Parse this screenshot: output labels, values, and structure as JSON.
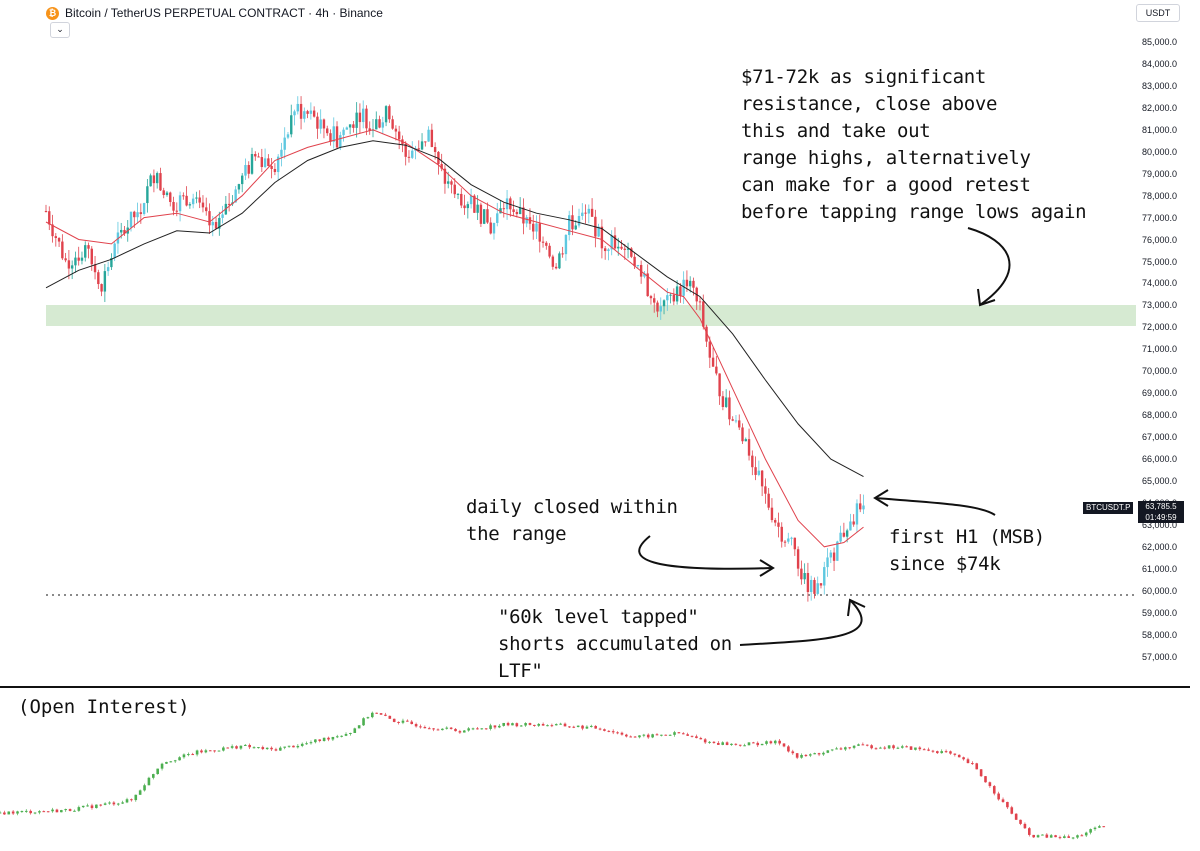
{
  "header": {
    "symbol_icon": "bitcoin-icon",
    "title": "Bitcoin / TetherUS PERPETUAL CONTRACT · 4h · Binance",
    "collapse_icon": "chevron-down-icon",
    "currency": "USDT"
  },
  "price_tag": {
    "symbol": "BTCUSDT.P",
    "price": "63,785.5",
    "countdown": "01:49:59"
  },
  "annotations": {
    "resistance_note": "$71-72k as significant\nresistance, close above\nthis and take out\nrange highs, alternatively\ncan make for a good retest\nbefore tapping range lows again",
    "daily_note": "daily closed within\nthe range",
    "msb_note": "first H1 (MSB)\nsince $74k",
    "tap_note": "\"60k level tapped\"\nshorts accumulated on\nLTF\""
  },
  "lower_panel": {
    "title": "(Open Interest)"
  },
  "colors": {
    "up": "#26a69a",
    "up_light": "#5ec8e0",
    "down": "#e0424c",
    "ema_fast": "#e0424c",
    "ema_slow": "#222222",
    "zone": "#d6ead2",
    "oi_up": "#4caf50",
    "oi_down": "#e0424c"
  },
  "chart_data": [
    {
      "type": "candlestick",
      "title": "Bitcoin / TetherUS PERPETUAL CONTRACT · 4h · Binance",
      "y_axis_ticks": [
        85000,
        84000,
        83000,
        82000,
        81000,
        80000,
        79000,
        78000,
        77000,
        76000,
        75000,
        74000,
        73000,
        72000,
        71000,
        70000,
        69000,
        68000,
        67000,
        66000,
        65000,
        64000,
        63000,
        62000,
        61000,
        60000,
        59000,
        58000,
        57000
      ],
      "y_axis_labels": [
        "85,000.0",
        "84,000.0",
        "83,000.0",
        "82,000.0",
        "81,000.0",
        "80,000.0",
        "79,000.0",
        "78,000.0",
        "77,000.0",
        "76,000.0",
        "75,000.0",
        "74,000.0",
        "73,000.0",
        "72,000.0",
        "71,000.0",
        "70,000.0",
        "69,000.0",
        "68,000.0",
        "67,000.0",
        "66,000.0",
        "65,000.0",
        "64,000.0",
        "63,000.0",
        "62,000.0",
        "61,000.0",
        "60,000.0",
        "59,000.0",
        "58,000.0",
        "57,000.0"
      ],
      "ylim": [
        56500,
        86000
      ],
      "last_price": 63785.5,
      "resistance_zone": [
        72000,
        73000
      ],
      "dotted_level": 59800,
      "price_path": [
        [
          0,
          77300
        ],
        [
          6,
          75000
        ],
        [
          12,
          75500
        ],
        [
          17,
          74000
        ],
        [
          22,
          76000
        ],
        [
          29,
          77500
        ],
        [
          33,
          79000
        ],
        [
          38,
          77600
        ],
        [
          44,
          78000
        ],
        [
          52,
          76200
        ],
        [
          57,
          78000
        ],
        [
          64,
          79800
        ],
        [
          70,
          79500
        ],
        [
          76,
          82000
        ],
        [
          82,
          81500
        ],
        [
          89,
          80600
        ],
        [
          96,
          81800
        ],
        [
          100,
          81200
        ],
        [
          105,
          81800
        ],
        [
          110,
          79800
        ],
        [
          117,
          80800
        ],
        [
          120,
          79200
        ],
        [
          125,
          78000
        ],
        [
          130,
          77800
        ],
        [
          136,
          76500
        ],
        [
          141,
          77800
        ],
        [
          146,
          76900
        ],
        [
          152,
          76200
        ],
        [
          156,
          74700
        ],
        [
          160,
          76700
        ],
        [
          166,
          77200
        ],
        [
          170,
          75800
        ],
        [
          175,
          76000
        ],
        [
          179,
          75400
        ],
        [
          184,
          73800
        ],
        [
          186,
          73000
        ],
        [
          191,
          73100
        ],
        [
          196,
          74200
        ],
        [
          200,
          72800
        ],
        [
          204,
          70000
        ],
        [
          209,
          68000
        ],
        [
          214,
          66800
        ],
        [
          219,
          64600
        ],
        [
          224,
          62900
        ],
        [
          229,
          61800
        ],
        [
          232,
          60400
        ],
        [
          236,
          60000
        ],
        [
          240,
          61500
        ],
        [
          243,
          62400
        ],
        [
          246,
          63300
        ],
        [
          250,
          63800
        ]
      ],
      "ema_fast_path": [
        [
          0,
          76800
        ],
        [
          10,
          76000
        ],
        [
          20,
          75800
        ],
        [
          30,
          77000
        ],
        [
          40,
          77200
        ],
        [
          50,
          76800
        ],
        [
          60,
          78000
        ],
        [
          70,
          79600
        ],
        [
          80,
          80200
        ],
        [
          90,
          80600
        ],
        [
          100,
          81000
        ],
        [
          110,
          80400
        ],
        [
          120,
          79400
        ],
        [
          130,
          78000
        ],
        [
          140,
          77200
        ],
        [
          150,
          76800
        ],
        [
          160,
          76400
        ],
        [
          170,
          76000
        ],
        [
          180,
          74800
        ],
        [
          190,
          73600
        ],
        [
          195,
          73400
        ],
        [
          200,
          72400
        ],
        [
          210,
          69200
        ],
        [
          220,
          66000
        ],
        [
          230,
          63200
        ],
        [
          238,
          62000
        ],
        [
          244,
          62200
        ],
        [
          250,
          62900
        ]
      ],
      "ema_slow_path": [
        [
          0,
          73800
        ],
        [
          10,
          74600
        ],
        [
          20,
          75100
        ],
        [
          30,
          75800
        ],
        [
          40,
          76400
        ],
        [
          50,
          76300
        ],
        [
          60,
          77200
        ],
        [
          70,
          78600
        ],
        [
          80,
          79600
        ],
        [
          90,
          80200
        ],
        [
          100,
          80500
        ],
        [
          110,
          80300
        ],
        [
          120,
          79700
        ],
        [
          130,
          78500
        ],
        [
          140,
          77700
        ],
        [
          150,
          77200
        ],
        [
          160,
          76900
        ],
        [
          170,
          76500
        ],
        [
          180,
          75400
        ],
        [
          190,
          74300
        ],
        [
          200,
          73400
        ],
        [
          210,
          71700
        ],
        [
          220,
          69600
        ],
        [
          230,
          67600
        ],
        [
          240,
          66000
        ],
        [
          250,
          65200
        ]
      ]
    },
    {
      "type": "candlestick",
      "title": "(Open Interest)",
      "oi_path": [
        [
          0,
          20
        ],
        [
          15,
          22
        ],
        [
          30,
          30
        ],
        [
          37,
          60
        ],
        [
          45,
          68
        ],
        [
          55,
          73
        ],
        [
          62,
          70
        ],
        [
          70,
          75
        ],
        [
          80,
          84
        ],
        [
          85,
          100
        ],
        [
          90,
          93
        ],
        [
          98,
          88
        ],
        [
          105,
          85
        ],
        [
          115,
          90
        ],
        [
          125,
          90
        ],
        [
          133,
          88
        ],
        [
          137,
          87
        ],
        [
          145,
          80
        ],
        [
          155,
          83
        ],
        [
          162,
          76
        ],
        [
          168,
          74
        ],
        [
          178,
          76
        ],
        [
          182,
          64
        ],
        [
          188,
          68
        ],
        [
          195,
          73
        ],
        [
          206,
          72
        ],
        [
          216,
          68
        ],
        [
          222,
          58
        ],
        [
          235,
          2
        ],
        [
          245,
          0
        ],
        [
          249,
          6
        ],
        [
          252,
          9
        ]
      ]
    }
  ]
}
